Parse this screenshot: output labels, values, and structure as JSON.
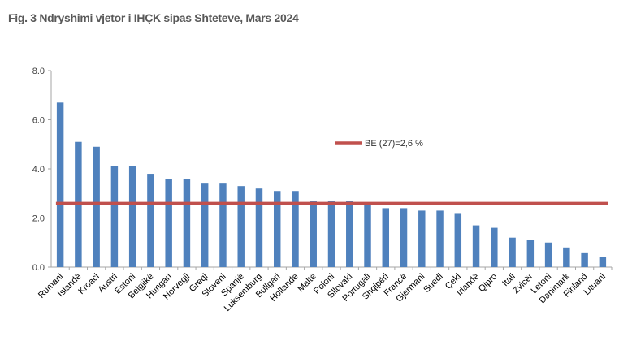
{
  "chart_data": {
    "type": "bar",
    "title": "Fig. 3 Ndryshimi vjetor i IHÇK sipas Shteteve, Mars 2024",
    "xlabel": "",
    "ylabel": "",
    "ylim": [
      0,
      8
    ],
    "yticks": [
      "0.0",
      "2.0",
      "4.0",
      "6.0",
      "8.0"
    ],
    "grid": false,
    "legend_position": "center-right",
    "categories": [
      "Rumani",
      "Islandë",
      "Kroaci",
      "Austri",
      "Estoni",
      "Belgjikë",
      "Hungari",
      "Norvegji",
      "Greqi",
      "Sloveni",
      "Spanjë",
      "Luksemburg",
      "Bullgari",
      "Hollandë",
      "Maltë",
      "Poloni",
      "Sllovaki",
      "Portugali",
      "Shqipëri",
      "Francë",
      "Gjermani",
      "Suedi",
      "Çeki",
      "Irlandë",
      "Qipro",
      "Itali",
      "Zvicër",
      "Letoni",
      "Danimark",
      "Finland",
      "Lituani"
    ],
    "series": [
      {
        "type": "bar",
        "color": "#4F81BD",
        "values": [
          6.7,
          5.1,
          4.9,
          4.1,
          4.1,
          3.8,
          3.6,
          3.6,
          3.4,
          3.4,
          3.3,
          3.2,
          3.1,
          3.1,
          2.7,
          2.7,
          2.7,
          2.6,
          2.4,
          2.4,
          2.3,
          2.3,
          2.2,
          1.7,
          1.6,
          1.2,
          1.1,
          1.0,
          0.8,
          0.6,
          0.4
        ]
      },
      {
        "type": "line",
        "name": "BE (27)=2,6 %",
        "color": "#C0504D",
        "value": 2.6
      }
    ]
  }
}
